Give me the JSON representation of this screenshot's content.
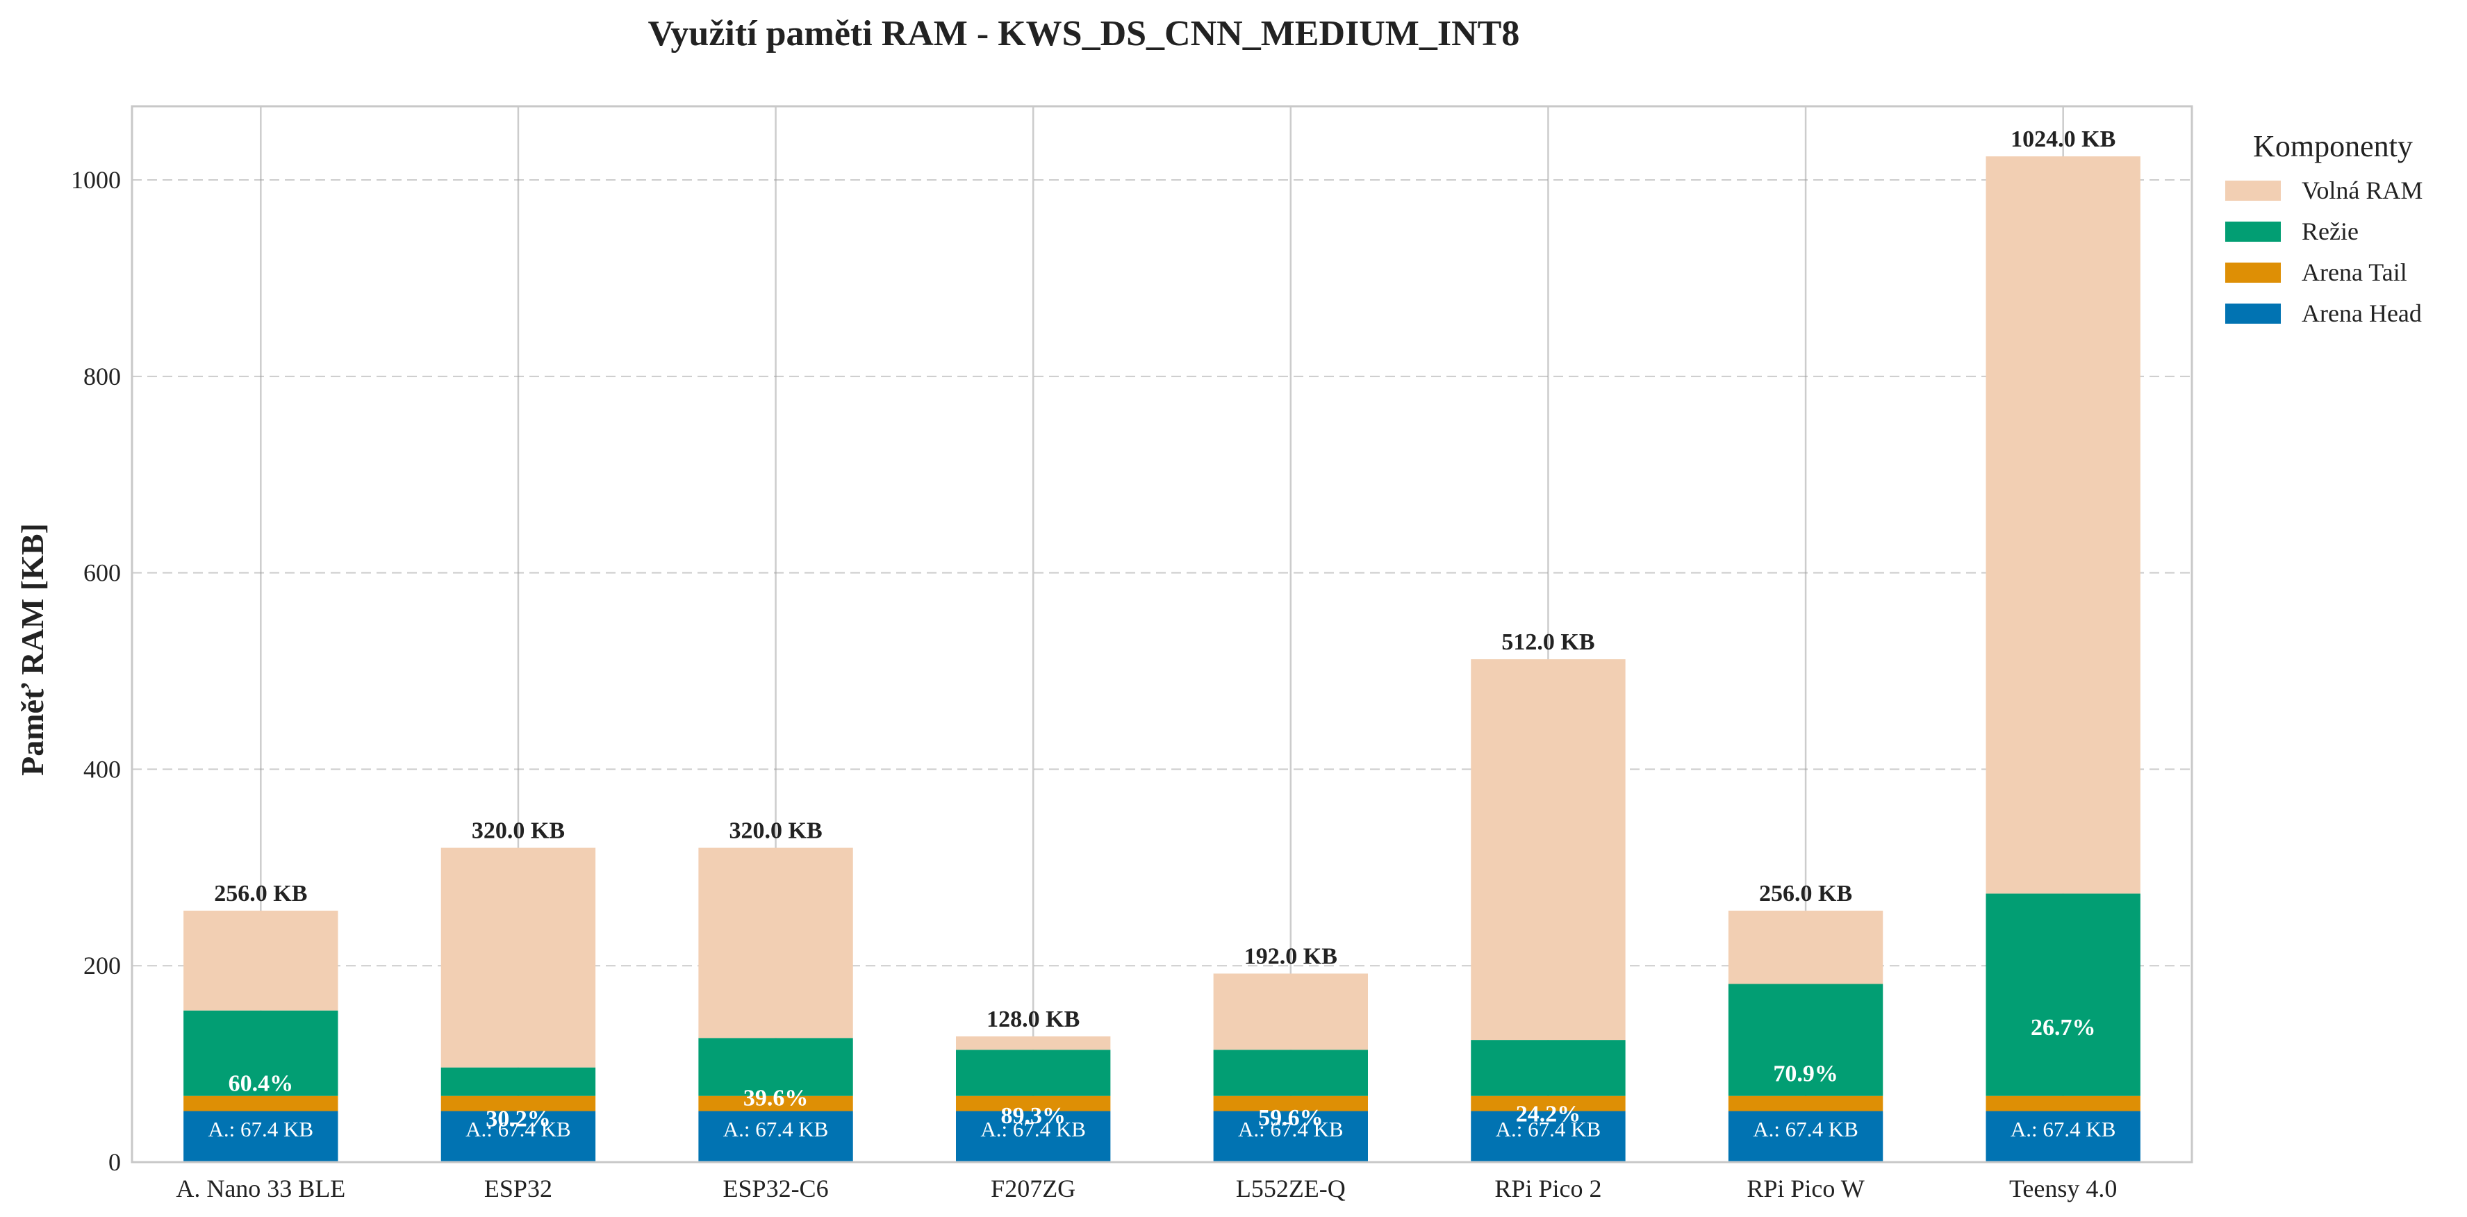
{
  "chart_data": {
    "type": "bar",
    "stacked": true,
    "title": "Využití paměti RAM - KWS_DS_CNN_MEDIUM_INT8",
    "xlabel": "",
    "ylabel": "Paměť RAM [KB]",
    "ylim": [
      0,
      1075
    ],
    "yticks": [
      0,
      200,
      400,
      600,
      800,
      1000
    ],
    "grid": true,
    "legend": {
      "title": "Komponenty",
      "placement": "outside-top-right"
    },
    "categories": [
      "A. Nano 33 BLE",
      "ESP32",
      "ESP32-C6",
      "F207ZG",
      "L552ZE-Q",
      "RPi Pico 2",
      "RPi Pico W",
      "Teensy 4.0"
    ],
    "series": [
      {
        "name": "Arena Head",
        "color": "#0173b2",
        "values": [
          52,
          52,
          52,
          52,
          52,
          52,
          52,
          52
        ]
      },
      {
        "name": "Arena Tail",
        "color": "#de8f05",
        "values": [
          15.4,
          15.4,
          15.4,
          15.4,
          15.4,
          15.4,
          15.4,
          15.4
        ]
      },
      {
        "name": "Režie",
        "color": "#029e73",
        "values": [
          87,
          29,
          59,
          47,
          47,
          57,
          114,
          206
        ]
      },
      {
        "name": "Volná RAM",
        "color": "#f2cfb3",
        "values": [
          101.6,
          223.6,
          193.6,
          13.6,
          77.6,
          387.6,
          74.6,
          750.6
        ]
      }
    ],
    "legend_order": [
      "Volná RAM",
      "Režie",
      "Arena Tail",
      "Arena Head"
    ],
    "total_labels": [
      "256.0 KB",
      "320.0 KB",
      "320.0 KB",
      "128.0 KB",
      "192.0 KB",
      "512.0 KB",
      "256.0 KB",
      "1024.0 KB"
    ],
    "totals": [
      256,
      320,
      320,
      128,
      192,
      512,
      256,
      1024
    ],
    "percent_labels": [
      "60.4%",
      "30.2%",
      "39.6%",
      "89.3%",
      "59.6%",
      "24.2%",
      "70.9%",
      "26.7%"
    ],
    "percent_values": [
      81,
      45,
      66,
      48,
      46,
      50,
      91,
      138
    ],
    "arena_labels": [
      "A.: 67.4 KB",
      "A.: 67.4 KB",
      "A.: 67.4 KB",
      "A.: 67.4 KB",
      "A.: 67.4 KB",
      "A.: 67.4 KB",
      "A.: 67.4 KB",
      "A.: 67.4 KB"
    ],
    "arena_label_value": 34
  }
}
